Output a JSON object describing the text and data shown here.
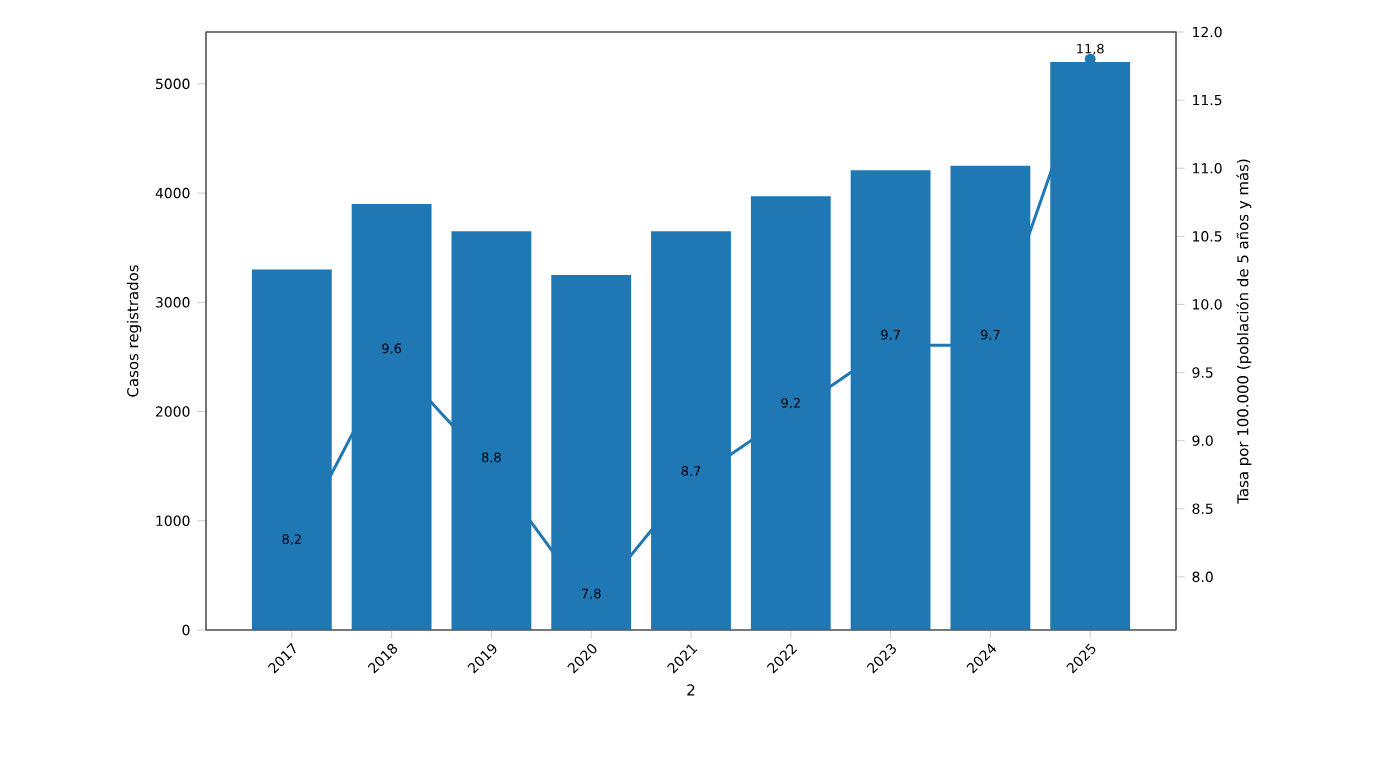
{
  "chart_data": {
    "type": "bar",
    "xlabel": "2",
    "ylabel": "Casos registrados",
    "y2label": "Tasa por 100.000 (población de 5 años y más)",
    "categories": [
      "2017",
      "2018",
      "2019",
      "2020",
      "2021",
      "2022",
      "2023",
      "2024",
      "2025"
    ],
    "series": [
      {
        "color": "#1f77b4",
        "values": [
          3300,
          3900,
          3650,
          3250,
          3650,
          3970,
          4210,
          4250,
          5200
        ]
      },
      {
        "type": "line",
        "axis": "y2",
        "color": "#1f77b4",
        "values": [
          8.2,
          9.6,
          8.8,
          7.8,
          8.7,
          9.2,
          9.7,
          9.7,
          11.8
        ],
        "value_labels": [
          "8,2",
          "9,6",
          "8,8",
          "7,8",
          "8,7",
          "9,2",
          "9,7",
          "9,7",
          "11,8"
        ]
      }
    ],
    "ylim": [
      0,
      5475
    ],
    "yticks": [
      0,
      1000,
      2000,
      3000,
      4000,
      5000
    ],
    "y2lim": [
      7.61,
      12.0
    ],
    "y2ticks": [
      {
        "value": 8.0,
        "label": "8.0"
      },
      {
        "value": 8.5,
        "label": "8.5"
      },
      {
        "value": 9.0,
        "label": "9.0"
      },
      {
        "value": 9.5,
        "label": "9.5"
      },
      {
        "value": 10.0,
        "label": "10.0"
      },
      {
        "value": 10.5,
        "label": "10.5"
      },
      {
        "value": 11.0,
        "label": "11.0"
      },
      {
        "value": 11.5,
        "label": "11.5"
      },
      {
        "value": 12.0,
        "label": "12.0"
      }
    ],
    "marker": "circle",
    "line_style": "solid"
  }
}
